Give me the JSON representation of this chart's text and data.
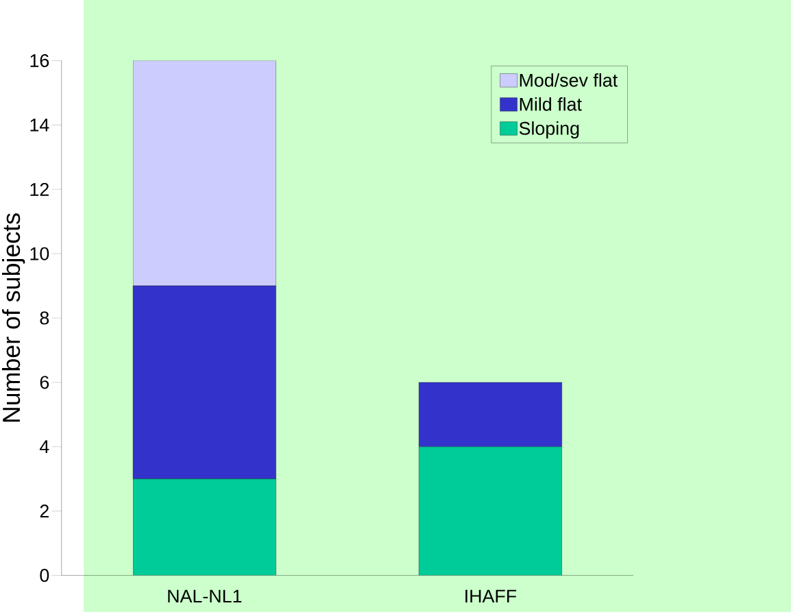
{
  "chart_data": {
    "type": "bar",
    "stacked": true,
    "ylabel": "Number of subjects",
    "categories": [
      "NAL-NL1",
      "IHAFF"
    ],
    "series": [
      {
        "name": "Sloping",
        "color": "#00cc99",
        "values": [
          3,
          4
        ]
      },
      {
        "name": "Mild flat",
        "color": "#3333cc",
        "values": [
          6,
          2
        ]
      },
      {
        "name": "Mod/sev flat",
        "color": "#ccccff",
        "values": [
          7,
          0
        ]
      }
    ],
    "ylim": [
      0,
      16
    ],
    "yticks": [
      0,
      2,
      4,
      6,
      8,
      10,
      12,
      14,
      16
    ],
    "grid": false,
    "legend": "top right"
  }
}
